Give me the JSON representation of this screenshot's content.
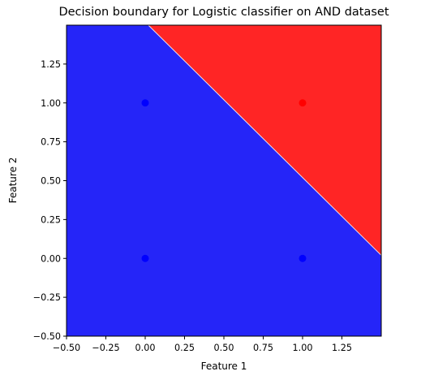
{
  "chart_data": {
    "type": "scatter",
    "title": "Decision boundary for Logistic classifier on AND dataset",
    "xlabel": "Feature 1",
    "ylabel": "Feature 2",
    "xlim": [
      -0.5,
      1.5
    ],
    "ylim": [
      -0.5,
      1.5
    ],
    "xticks": [
      -0.5,
      -0.25,
      0.0,
      0.25,
      0.5,
      0.75,
      1.0,
      1.25
    ],
    "yticks": [
      -0.5,
      -0.25,
      0.0,
      0.25,
      0.5,
      0.75,
      1.0,
      1.25
    ],
    "xtick_labels": [
      "−0.50",
      "−0.25",
      "0.00",
      "0.25",
      "0.50",
      "0.75",
      "1.00",
      "1.25"
    ],
    "ytick_labels": [
      "−0.50",
      "−0.25",
      "0.00",
      "0.25",
      "0.50",
      "0.75",
      "1.00",
      "1.25"
    ],
    "grid": false,
    "decision_boundary": {
      "points": [
        [
          0.02,
          1.5
        ],
        [
          1.5,
          0.02
        ]
      ]
    },
    "regions": [
      {
        "class": 0,
        "color": "#2525f8",
        "side": "below"
      },
      {
        "class": 1,
        "color": "#ff2525",
        "side": "above"
      }
    ],
    "points": [
      {
        "x": 0,
        "y": 0,
        "class": 0,
        "color": "#0000ff"
      },
      {
        "x": 0,
        "y": 1,
        "class": 0,
        "color": "#0000ff"
      },
      {
        "x": 1,
        "y": 0,
        "class": 0,
        "color": "#0000ff"
      },
      {
        "x": 1,
        "y": 1,
        "class": 1,
        "color": "#ff0000"
      }
    ]
  }
}
